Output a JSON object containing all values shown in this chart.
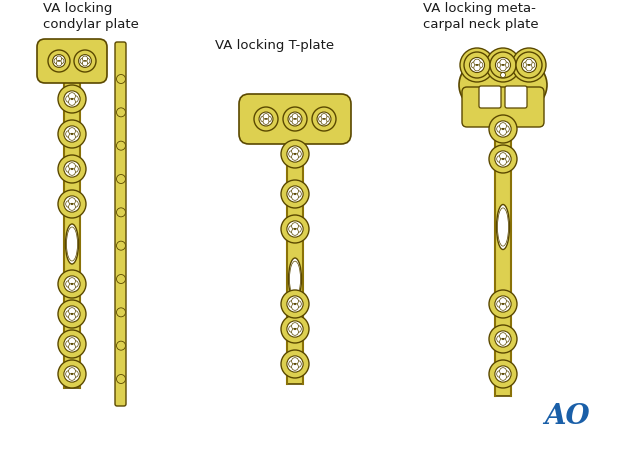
{
  "background_color": "#ffffff",
  "title_label1": "VA locking\ncondylar plate",
  "title_label2": "VA locking T-plate",
  "title_label3": "VA locking meta-\ncarpal neck plate",
  "plate_gold": "#c8b428",
  "plate_gold_light": "#ddd050",
  "plate_gold_mid": "#c0a820",
  "plate_gold_dark": "#8a7208",
  "plate_outline": "#5a4800",
  "hole_white": "#ffffff",
  "ao_blue": "#1a5fa8",
  "font_size_title": 9.5
}
